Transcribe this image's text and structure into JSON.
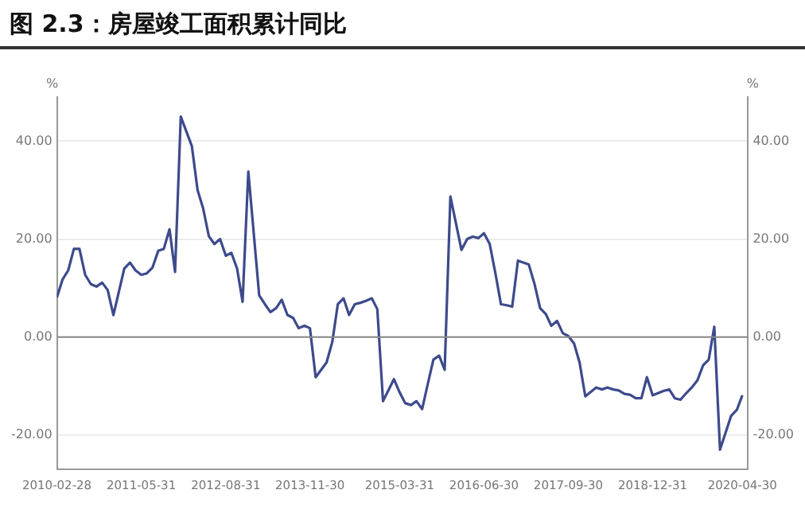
{
  "chart_data": {
    "type": "line",
    "title": "图 2.3：房屋竣工面积累计同比",
    "ylabel": "%",
    "y2label": "%",
    "x": [
      "2010-02-28",
      "2010-03-31",
      "2010-04-30",
      "2010-05-31",
      "2010-06-30",
      "2010-07-31",
      "2010-08-31",
      "2010-09-30",
      "2010-10-31",
      "2010-11-30",
      "2010-12-31",
      "2011-02-28",
      "2011-03-31",
      "2011-04-30",
      "2011-05-31",
      "2011-06-30",
      "2011-07-31",
      "2011-08-31",
      "2011-09-30",
      "2011-10-31",
      "2011-11-30",
      "2011-12-31",
      "2012-02-29",
      "2012-03-31",
      "2012-04-30",
      "2012-05-31",
      "2012-06-30",
      "2012-07-31",
      "2012-08-31",
      "2012-09-30",
      "2012-10-31",
      "2012-11-30",
      "2012-12-31",
      "2013-02-28",
      "2013-03-31",
      "2013-04-30",
      "2013-05-31",
      "2013-06-30",
      "2013-07-31",
      "2013-08-31",
      "2013-09-30",
      "2013-10-31",
      "2013-11-30",
      "2013-12-31",
      "2014-02-28",
      "2014-03-31",
      "2014-04-30",
      "2014-05-31",
      "2014-06-30",
      "2014-07-31",
      "2014-08-31",
      "2014-09-30",
      "2014-10-31",
      "2014-11-30",
      "2014-12-31",
      "2015-02-28",
      "2015-03-31",
      "2015-04-30",
      "2015-05-31",
      "2015-06-30",
      "2015-07-31",
      "2015-08-31",
      "2015-09-30",
      "2015-10-31",
      "2015-11-30",
      "2015-12-31",
      "2016-02-29",
      "2016-03-31",
      "2016-04-30",
      "2016-05-31",
      "2016-06-30",
      "2016-07-31",
      "2016-08-31",
      "2016-09-30",
      "2016-10-31",
      "2016-11-30",
      "2016-12-31",
      "2017-02-28",
      "2017-03-31",
      "2017-04-30",
      "2017-05-31",
      "2017-06-30",
      "2017-07-31",
      "2017-08-31",
      "2017-09-30",
      "2017-10-31",
      "2017-11-30",
      "2017-12-31",
      "2018-02-28",
      "2018-03-31",
      "2018-04-30",
      "2018-05-31",
      "2018-06-30",
      "2018-07-31",
      "2018-08-31",
      "2018-09-30",
      "2018-10-31",
      "2018-11-30",
      "2018-12-31",
      "2019-02-28",
      "2019-03-31",
      "2019-04-30",
      "2019-05-31",
      "2019-06-30",
      "2019-07-31",
      "2019-08-31",
      "2019-09-30",
      "2019-10-31",
      "2019-11-30",
      "2019-12-31",
      "2020-02-29",
      "2020-03-31",
      "2020-04-30"
    ],
    "series": [
      {
        "color": "#3d4a8c",
        "values": [
          8.1,
          11.8,
          13.6,
          18,
          18,
          12.7,
          10.8,
          10.3,
          11.1,
          9.6,
          4.5,
          14,
          15.2,
          13.6,
          12.7,
          13,
          14.2,
          17.6,
          18,
          22,
          13.3,
          45,
          39,
          30,
          26.3,
          20.6,
          19,
          20,
          16.6,
          17.2,
          14,
          7.2,
          33.8,
          8.5,
          6.7,
          5.1,
          5.9,
          7.6,
          4.5,
          3.9,
          1.8,
          2.3,
          1.8,
          -8.2,
          -5.2,
          -1,
          6.7,
          7.9,
          4.5,
          6.7,
          7,
          7.4,
          7.9,
          5.7,
          -13.1,
          -8.6,
          -11.3,
          -13.5,
          -13.9,
          -13.1,
          -14.7,
          -9.5,
          -4.6,
          -3.8,
          -6.7,
          28.7,
          17.8,
          20,
          20.5,
          20.2,
          21.2,
          19,
          13,
          6.7,
          6.5,
          6.2,
          15.6,
          14.8,
          10.8,
          5.9,
          4.7,
          2.3,
          3.3,
          0.8,
          0.2,
          -1.3,
          -5.2,
          -12.1,
          -10.3,
          -10.7,
          -10.3,
          -10.7,
          -10.9,
          -11.6,
          -11.8,
          -12.5,
          -12.5,
          -8.2,
          -11.9,
          -11,
          -10.7,
          -12.5,
          -12.8,
          -11.5,
          -10.3,
          -8.8,
          -5.8,
          -4.6,
          2.1,
          -23,
          -16.1,
          -14.9,
          -11.9
        ]
      }
    ],
    "xlim": [
      "2010-02-28",
      "2020-05-31"
    ],
    "xticks": [
      "2010-02-28",
      "2011-05-31",
      "2012-08-31",
      "2013-11-30",
      "2015-03-31",
      "2016-06-30",
      "2017-09-30",
      "2018-12-31",
      "2020-04-30"
    ],
    "ylim": [
      -27,
      49
    ],
    "yticks": [
      {
        "value": -20,
        "label": "-20.00"
      },
      {
        "value": 0,
        "label": "0.00"
      },
      {
        "value": 20,
        "label": "20.00"
      },
      {
        "value": 40,
        "label": "40.00"
      }
    ],
    "y2lim": [
      -27,
      49
    ],
    "y2ticks": [
      {
        "value": -20,
        "label": "-20.00"
      },
      {
        "value": 0,
        "label": "0.00"
      },
      {
        "value": 20,
        "label": "20.00"
      },
      {
        "value": 40,
        "label": "40.00"
      }
    ],
    "ref_lines": [
      {
        "axis": "y",
        "value": 0,
        "color": "#888888"
      }
    ],
    "grid": "y",
    "legend": false,
    "marker": "none",
    "line_style": "solid"
  }
}
